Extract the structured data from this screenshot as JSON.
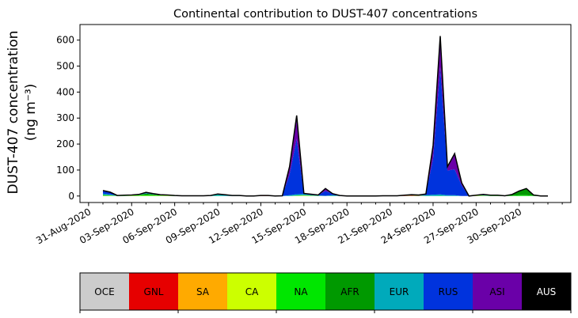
{
  "chart_data": {
    "type": "area",
    "title": "Continental contribution to DUST-407 concentrations",
    "ylabel_line1": "DUST-407 concentration",
    "ylabel_line2": "(ng m⁻³)",
    "xlabel": "",
    "ylim": [
      -25,
      660
    ],
    "yticks": [
      0,
      100,
      200,
      300,
      400,
      500,
      600
    ],
    "x_start_date": "2020-08-31",
    "xlim_days": [
      -0.6,
      33.6
    ],
    "xtick_days": [
      0,
      3,
      6,
      9,
      12,
      15,
      18,
      21,
      24,
      27,
      30
    ],
    "xtick_labels": [
      "31-Aug-2020",
      "03-Sep-2020",
      "06-Sep-2020",
      "09-Sep-2020",
      "12-Sep-2020",
      "15-Sep-2020",
      "18-Sep-2020",
      "21-Sep-2020",
      "24-Sep-2020",
      "27-Sep-2020",
      "30-Sep-2020"
    ],
    "x": [
      1,
      1.5,
      2,
      2.5,
      3,
      3.5,
      4,
      4.5,
      5,
      5.5,
      6,
      6.5,
      7,
      7.5,
      8,
      8.5,
      9,
      9.5,
      10,
      10.5,
      11,
      11.5,
      12,
      12.5,
      13,
      13.5,
      14,
      14.5,
      15,
      15.5,
      16,
      16.5,
      17,
      17.5,
      18,
      18.5,
      19,
      19.5,
      20,
      20.5,
      21,
      21.5,
      22,
      22.5,
      23,
      23.5,
      24,
      24.5,
      25,
      25.5,
      26,
      26.5,
      27,
      27.5,
      28,
      28.5,
      29,
      29.5,
      30,
      30.5,
      31,
      31.5,
      32
    ],
    "series": [
      {
        "name": "OCE",
        "color": "#cccccc",
        "values": [
          0,
          0,
          0,
          0,
          0,
          0,
          0,
          0,
          0,
          0,
          0,
          0,
          0,
          0,
          0,
          0,
          0,
          0,
          0,
          0,
          0,
          0,
          0,
          0,
          0,
          0,
          0,
          0,
          0,
          0,
          0,
          0,
          0,
          0,
          0,
          0,
          0,
          0,
          0,
          0,
          0,
          0,
          0,
          0,
          0,
          0,
          0,
          0,
          0,
          0,
          0,
          0,
          0,
          0,
          0,
          0,
          0,
          0,
          0,
          0,
          0,
          0,
          0
        ]
      },
      {
        "name": "GNL",
        "color": "#e60000",
        "values": [
          0,
          0,
          0,
          0,
          0,
          0,
          0,
          0,
          0,
          0,
          0,
          0,
          0,
          0,
          0,
          0,
          0,
          0,
          0,
          0,
          0,
          0,
          2,
          2,
          0,
          0,
          0,
          0,
          0,
          0,
          0,
          0,
          0,
          0,
          0,
          0,
          0,
          0,
          0,
          0,
          0,
          0,
          1,
          2,
          1,
          0,
          0,
          0,
          0,
          0,
          0,
          0,
          0,
          0,
          0,
          0,
          0,
          0,
          0,
          0,
          0,
          0,
          0
        ]
      },
      {
        "name": "SA",
        "color": "#ffaa00",
        "values": [
          0,
          0,
          0,
          0,
          0,
          0,
          0,
          0,
          0,
          0,
          0,
          0,
          0,
          0,
          0,
          0,
          0,
          0,
          0,
          0,
          0,
          0,
          0,
          0,
          0,
          0,
          0,
          0,
          0,
          0,
          0,
          0,
          0,
          0,
          0,
          0,
          0,
          0,
          0,
          0,
          0,
          0,
          0,
          0,
          0,
          0,
          0,
          0,
          0,
          0,
          0,
          0,
          0,
          0,
          0,
          0,
          0,
          0,
          0,
          0,
          0,
          0,
          0
        ]
      },
      {
        "name": "CA",
        "color": "#ccff00",
        "values": [
          1,
          1,
          0,
          0,
          1,
          1,
          1,
          1,
          1,
          1,
          0,
          0,
          0,
          0,
          0,
          0,
          0,
          0,
          0,
          0,
          0,
          0,
          0,
          0,
          0,
          0,
          0,
          1,
          2,
          1,
          0,
          0,
          0,
          0,
          0,
          0,
          0,
          0,
          0,
          0,
          0,
          0,
          0,
          0,
          0,
          0,
          0,
          0,
          0,
          0,
          0,
          0,
          1,
          1,
          0,
          0,
          0,
          0,
          0,
          0,
          0,
          0,
          0
        ]
      },
      {
        "name": "NA",
        "color": "#00e600",
        "values": [
          2,
          1,
          1,
          1,
          1,
          2,
          3,
          2,
          1,
          1,
          1,
          0,
          0,
          0,
          0,
          0,
          1,
          0,
          0,
          0,
          0,
          0,
          0,
          0,
          0,
          0,
          0,
          1,
          1,
          1,
          1,
          0,
          1,
          0,
          0,
          0,
          0,
          0,
          0,
          0,
          0,
          0,
          1,
          1,
          1,
          1,
          0,
          1,
          0,
          0,
          0,
          0,
          1,
          1,
          1,
          1,
          1,
          1,
          3,
          3,
          1,
          0,
          0
        ]
      },
      {
        "name": "AFR",
        "color": "#009900",
        "values": [
          1,
          1,
          0,
          0,
          1,
          1,
          5,
          3,
          1,
          1,
          0,
          0,
          0,
          0,
          0,
          0,
          0,
          0,
          0,
          0,
          0,
          0,
          0,
          0,
          0,
          0,
          0,
          0,
          0,
          0,
          0,
          0,
          0,
          0,
          0,
          0,
          0,
          0,
          0,
          0,
          0,
          0,
          0,
          0,
          0,
          0,
          0,
          0,
          0,
          0,
          0,
          0,
          0,
          0,
          0,
          0,
          0,
          5,
          15,
          25,
          3,
          0,
          0
        ]
      },
      {
        "name": "EUR",
        "color": "#00aabb",
        "values": [
          5,
          3,
          1,
          1,
          1,
          1,
          2,
          2,
          1,
          1,
          1,
          1,
          1,
          1,
          1,
          2,
          5,
          3,
          1,
          1,
          0,
          0,
          0,
          0,
          0,
          0,
          3,
          5,
          5,
          2,
          1,
          1,
          2,
          1,
          0,
          0,
          0,
          0,
          0,
          1,
          1,
          1,
          1,
          1,
          2,
          2,
          5,
          5,
          3,
          3,
          0,
          0,
          1,
          1,
          1,
          1,
          0,
          0,
          1,
          1,
          0,
          0,
          0
        ]
      },
      {
        "name": "RUS",
        "color": "#0033dd",
        "values": [
          11,
          9,
          0,
          1,
          0,
          1,
          3,
          1,
          1,
          0,
          0,
          0,
          0,
          0,
          0,
          0,
          2,
          2,
          1,
          1,
          0,
          0,
          0,
          0,
          0,
          1,
          80,
          213,
          2,
          3,
          2,
          18,
          6,
          1,
          0,
          0,
          0,
          0,
          0,
          0,
          0,
          0,
          0,
          1,
          0,
          5,
          140,
          490,
          95,
          100,
          40,
          0,
          0,
          1,
          1,
          1,
          0,
          0,
          0,
          0,
          0,
          0,
          0
        ]
      },
      {
        "name": "ASI",
        "color": "#6a00a8",
        "values": [
          1,
          0,
          0,
          0,
          0,
          0,
          0,
          0,
          0,
          0,
          0,
          0,
          0,
          0,
          0,
          0,
          0,
          0,
          0,
          0,
          0,
          0,
          0,
          0,
          0,
          0,
          30,
          90,
          0,
          0,
          0,
          10,
          0,
          0,
          0,
          0,
          0,
          0,
          0,
          0,
          0,
          0,
          0,
          0,
          0,
          0,
          50,
          120,
          15,
          60,
          10,
          0,
          0,
          2,
          0,
          0,
          0,
          0,
          0,
          0,
          0,
          0,
          0
        ]
      },
      {
        "name": "AUS",
        "color": "#000000",
        "values": [
          0,
          0,
          0,
          0,
          0,
          0,
          0,
          0,
          0,
          0,
          0,
          0,
          0,
          0,
          0,
          0,
          0,
          0,
          0,
          0,
          0,
          0,
          0,
          0,
          0,
          0,
          0,
          0,
          0,
          0,
          0,
          0,
          0,
          0,
          0,
          0,
          0,
          0,
          0,
          0,
          0,
          0,
          0,
          0,
          0,
          0,
          0,
          0,
          0,
          0,
          0,
          0,
          0,
          0,
          0,
          0,
          0,
          0,
          0,
          0,
          0,
          0,
          0
        ]
      }
    ],
    "legend": [
      {
        "label": "OCE",
        "color": "#cccccc",
        "text_color": "#000000"
      },
      {
        "label": "GNL",
        "color": "#e60000",
        "text_color": "#000000"
      },
      {
        "label": "SA",
        "color": "#ffaa00",
        "text_color": "#000000"
      },
      {
        "label": "CA",
        "color": "#ccff00",
        "text_color": "#000000"
      },
      {
        "label": "NA",
        "color": "#00e600",
        "text_color": "#000000"
      },
      {
        "label": "AFR",
        "color": "#009900",
        "text_color": "#000000"
      },
      {
        "label": "EUR",
        "color": "#00aabb",
        "text_color": "#000000"
      },
      {
        "label": "RUS",
        "color": "#0033dd",
        "text_color": "#000000"
      },
      {
        "label": "ASI",
        "color": "#6a00a8",
        "text_color": "#000000"
      },
      {
        "label": "AUS",
        "color": "#000000",
        "text_color": "#ffffff"
      }
    ],
    "legend_placement": "bottom colorbar",
    "grid": false
  }
}
